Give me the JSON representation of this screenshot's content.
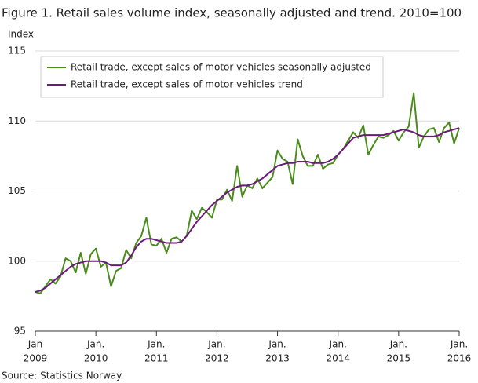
{
  "chart_data": {
    "type": "line",
    "title": "Figure 1. Retail sales volume index, seasonally adjusted and trend. 2010=100",
    "y_label": "Index",
    "source": "Source: Statistics Norway.",
    "x": [
      "2009-01",
      "2009-02",
      "2009-03",
      "2009-04",
      "2009-05",
      "2009-06",
      "2009-07",
      "2009-08",
      "2009-09",
      "2009-10",
      "2009-11",
      "2009-12",
      "2010-01",
      "2010-02",
      "2010-03",
      "2010-04",
      "2010-05",
      "2010-06",
      "2010-07",
      "2010-08",
      "2010-09",
      "2010-10",
      "2010-11",
      "2010-12",
      "2011-01",
      "2011-02",
      "2011-03",
      "2011-04",
      "2011-05",
      "2011-06",
      "2011-07",
      "2011-08",
      "2011-09",
      "2011-10",
      "2011-11",
      "2011-12",
      "2012-01",
      "2012-02",
      "2012-03",
      "2012-04",
      "2012-05",
      "2012-06",
      "2012-07",
      "2012-08",
      "2012-09",
      "2012-10",
      "2012-11",
      "2012-12",
      "2013-01",
      "2013-02",
      "2013-03",
      "2013-04",
      "2013-05",
      "2013-06",
      "2013-07",
      "2013-08",
      "2013-09",
      "2013-10",
      "2013-11",
      "2013-12",
      "2014-01",
      "2014-02",
      "2014-03",
      "2014-04",
      "2014-05",
      "2014-06",
      "2014-07",
      "2014-08",
      "2014-09",
      "2014-10",
      "2014-11",
      "2014-12",
      "2015-01",
      "2015-02",
      "2015-03",
      "2015-04",
      "2015-05",
      "2015-06",
      "2015-07",
      "2015-08",
      "2015-09",
      "2015-10",
      "2015-11",
      "2015-12",
      "2016-01"
    ],
    "xticks": [
      {
        "value": "2009-01",
        "label": [
          "Jan",
          "2009"
        ]
      },
      {
        "value": "2010-01",
        "label": [
          "Jan.",
          "2010"
        ]
      },
      {
        "value": "2011-01",
        "label": [
          "Jan.",
          "2011"
        ]
      },
      {
        "value": "2012-01",
        "label": [
          "Jan.",
          "2012"
        ]
      },
      {
        "value": "2013-01",
        "label": [
          "Jan.",
          "2013"
        ]
      },
      {
        "value": "2014-01",
        "label": [
          "Jan.",
          "2014"
        ]
      },
      {
        "value": "2015-01",
        "label": [
          "Jan.",
          "2015"
        ]
      },
      {
        "value": "2016-01",
        "label": [
          "Jan.",
          "2016"
        ]
      }
    ],
    "ylim": [
      95,
      115
    ],
    "yticks": [
      95,
      100,
      105,
      110,
      115
    ],
    "grid": true,
    "legend": "top-left",
    "series": [
      {
        "name": "Retail trade, except sales of motor vehicles seasonally adjusted",
        "color": "#4a8c1c",
        "values": [
          97.8,
          97.7,
          98.2,
          98.7,
          98.4,
          98.9,
          100.2,
          100.0,
          99.2,
          100.6,
          99.1,
          100.5,
          100.9,
          99.6,
          99.9,
          98.2,
          99.3,
          99.5,
          100.8,
          100.2,
          101.3,
          101.8,
          103.1,
          101.2,
          101.1,
          101.6,
          100.6,
          101.6,
          101.7,
          101.4,
          101.8,
          103.6,
          103.0,
          103.8,
          103.5,
          103.1,
          104.4,
          104.4,
          105.1,
          104.3,
          106.8,
          104.6,
          105.4,
          105.2,
          105.9,
          105.2,
          105.6,
          106.0,
          107.9,
          107.3,
          107.1,
          105.5,
          108.7,
          107.5,
          106.8,
          106.8,
          107.6,
          106.6,
          106.9,
          107.0,
          107.6,
          108.0,
          108.6,
          109.2,
          108.8,
          109.7,
          107.6,
          108.3,
          108.9,
          108.8,
          109.0,
          109.3,
          108.6,
          109.2,
          109.6,
          112.0,
          108.1,
          108.9,
          109.4,
          109.5,
          108.5,
          109.5,
          109.9,
          108.4,
          109.5
        ]
      },
      {
        "name": "Retail trade, except sales of motor vehicles trend",
        "color": "#6a1b7a",
        "values": [
          97.8,
          97.9,
          98.1,
          98.4,
          98.7,
          99.0,
          99.3,
          99.6,
          99.8,
          99.9,
          100.0,
          100.0,
          100.0,
          100.0,
          99.9,
          99.7,
          99.7,
          99.7,
          99.9,
          100.4,
          101.0,
          101.4,
          101.6,
          101.6,
          101.5,
          101.4,
          101.3,
          101.3,
          101.3,
          101.4,
          101.8,
          102.3,
          102.8,
          103.2,
          103.6,
          104.0,
          104.3,
          104.6,
          104.9,
          105.1,
          105.3,
          105.4,
          105.4,
          105.5,
          105.7,
          105.9,
          106.2,
          106.5,
          106.8,
          106.9,
          107.0,
          107.0,
          107.1,
          107.1,
          107.1,
          107.0,
          107.0,
          107.0,
          107.1,
          107.3,
          107.6,
          108.0,
          108.4,
          108.8,
          108.9,
          109.0,
          109.0,
          109.0,
          109.0,
          109.0,
          109.1,
          109.2,
          109.3,
          109.4,
          109.3,
          109.2,
          109.0,
          108.9,
          108.9,
          108.9,
          109.0,
          109.2,
          109.3,
          109.4,
          109.5
        ]
      }
    ]
  }
}
